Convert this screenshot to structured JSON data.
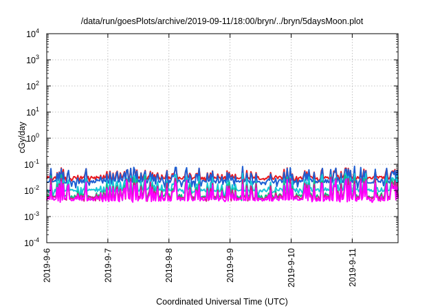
{
  "chart_data": {
    "type": "line",
    "title": "/data/run/goesPlots/archive/2019-09-11/18:00/bryn/../bryn/5daysMoon.plot",
    "xlabel": "Coordinated Universal Time (UTC)",
    "ylabel": "cGy/day",
    "yscale": "log",
    "ylim": [
      0.0001,
      10000
    ],
    "y_ticks": [
      {
        "value": 0.0001,
        "base": "10",
        "exp": "-4"
      },
      {
        "value": 0.001,
        "base": "10",
        "exp": "-3"
      },
      {
        "value": 0.01,
        "base": "10",
        "exp": "-2"
      },
      {
        "value": 0.1,
        "base": "10",
        "exp": "-1"
      },
      {
        "value": 1,
        "base": "10",
        "exp": "0"
      },
      {
        "value": 10,
        "base": "10",
        "exp": "1"
      },
      {
        "value": 100,
        "base": "10",
        "exp": "2"
      },
      {
        "value": 1000,
        "base": "10",
        "exp": "3"
      },
      {
        "value": 10000,
        "base": "10",
        "exp": "4"
      }
    ],
    "xlim": [
      "2019-09-06T00:00",
      "2019-09-11T18:00"
    ],
    "x_ticks": [
      "2019-9-6",
      "2019-9-7",
      "2019-9-8",
      "2019-9-9",
      "2019-9-10",
      "2019-9-11"
    ],
    "grid": true,
    "legend": "none",
    "series": [
      {
        "color": "#e8191e",
        "baseline": 0.03,
        "spike_max": 0.08,
        "dip_min": 0.02
      },
      {
        "color": "#1e5fd2",
        "baseline": 0.022,
        "spike_max": 0.09,
        "dip_min": 0.012
      },
      {
        "color": "#18c8d8",
        "baseline": 0.01,
        "spike_max": 0.05,
        "dip_min": 0.006
      },
      {
        "color": "#10c080",
        "baseline": 0.006,
        "spike_max": 0.04,
        "dip_min": 0.004
      },
      {
        "color": "#d81888",
        "baseline": 0.0052,
        "spike_max": 0.035,
        "dip_min": 0.0038
      },
      {
        "color": "#ff00ff",
        "baseline": 0.0045,
        "spike_max": 0.03,
        "dip_min": 0.0035
      }
    ]
  }
}
